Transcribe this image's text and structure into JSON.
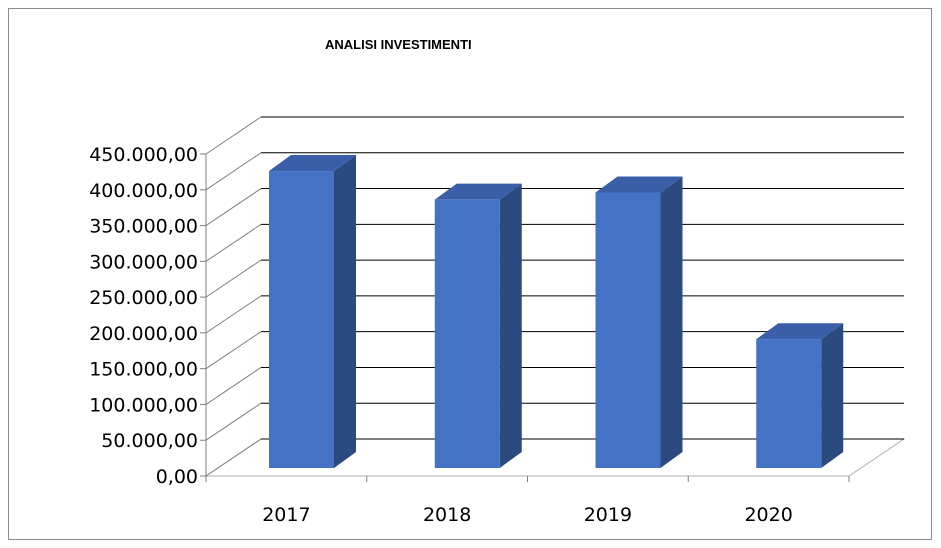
{
  "chart_data": {
    "type": "bar",
    "title": "ANALISI INVESTIMENTI",
    "categories": [
      "2017",
      "2018",
      "2019",
      "2020"
    ],
    "values": [
      415000,
      375000,
      385000,
      180000
    ],
    "ylim": [
      0,
      450000
    ],
    "y_ticks": [
      "0,00",
      "50.000,00",
      "100.000,00",
      "150.000,00",
      "200.000,00",
      "250.000,00",
      "300.000,00",
      "350.000,00",
      "400.000,00",
      "450.000,00"
    ],
    "y_tick_values": [
      0,
      50000,
      100000,
      150000,
      200000,
      250000,
      300000,
      350000,
      400000,
      450000
    ],
    "grid": true,
    "legend": "none",
    "three_d": true,
    "colors": {
      "bar_front": "#4472c4",
      "bar_side": "#2a4a80",
      "bar_top": "#3a5fa8",
      "grid": "#000000"
    }
  }
}
